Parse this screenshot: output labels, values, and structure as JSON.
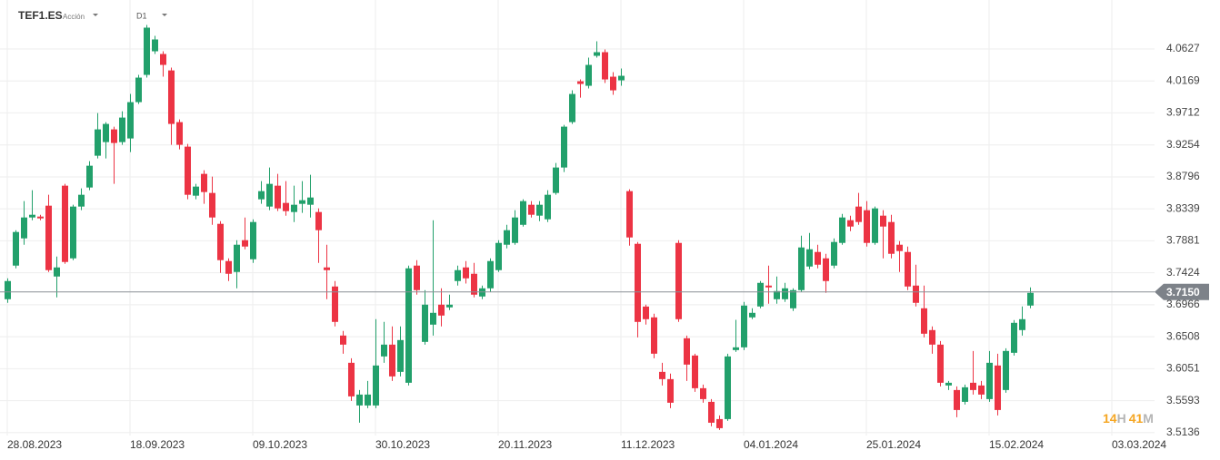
{
  "chart_data": {
    "type": "candlestick",
    "symbol": "TEF1.ES",
    "instrument_type": "Acción",
    "timeframe": "D1",
    "up_color": "#22a06b",
    "down_color": "#ec3444",
    "grid": true,
    "xlim": [
      -0.889,
      140.222
    ],
    "xticks": [
      {
        "value": 0,
        "label": "28.08.2023"
      },
      {
        "value": 15,
        "label": "18.09.2023"
      },
      {
        "value": 30,
        "label": "09.10.2023"
      },
      {
        "value": 45,
        "label": "30.10.2023"
      },
      {
        "value": 60,
        "label": "20.11.2023"
      },
      {
        "value": 75,
        "label": "11.12.2023"
      },
      {
        "value": 90,
        "label": "04.01.2024"
      },
      {
        "value": 105,
        "label": "25.01.2024"
      },
      {
        "value": 120,
        "label": "15.02.2024"
      },
      {
        "value": 135,
        "label": "03.03.2024"
      }
    ],
    "ylim": [
      3.5094,
      4.1328
    ],
    "yticks": [
      4.0627,
      4.0169,
      3.9712,
      3.9254,
      3.8796,
      3.8339,
      3.7881,
      3.7424,
      3.6966,
      3.6508,
      3.6051,
      3.5593,
      3.5136
    ],
    "current_price": {
      "value": 3.715,
      "label": "3.7150"
    },
    "countdown": {
      "hours": 14,
      "hours_unit": "H",
      "minutes": 41,
      "minutes_unit": "M"
    },
    "open": [
      3.7045,
      3.7526,
      3.7916,
      3.8215,
      3.8228,
      3.8384,
      3.737,
      3.867,
      3.763,
      3.8371,
      3.8644,
      3.9099,
      3.9294,
      3.9476,
      3.9294,
      3.9346,
      3.9866,
      4.0256,
      4.0594,
      4.0555,
      4.032,
      3.958,
      3.9229,
      3.8527,
      3.8839,
      3.8566,
      3.8124,
      3.7591,
      3.7435,
      3.789,
      3.7617,
      3.8475,
      3.8371,
      3.867,
      3.8423,
      3.8293,
      3.841,
      3.8397,
      3.8293,
      3.75,
      3.7227,
      3.6525,
      3.6135,
      3.5524,
      3.5524,
      3.5524,
      3.6226,
      3.6395,
      3.6005,
      3.5849,
      3.7526,
      3.6434,
      3.6681,
      3.6967,
      3.6928,
      3.7305,
      3.75,
      3.7409,
      3.7084,
      3.7201,
      3.7461,
      3.7825,
      3.7851,
      3.811,
      3.8397,
      3.8241,
      3.8189,
      3.8566,
      3.893,
      3.958,
      4.0165,
      4.01,
      4.0529,
      4.0581,
      4.023,
      4.0178,
      3.8592,
      3.7838,
      3.694,
      3.6785,
      3.6005,
      3.5901,
      3.7851,
      3.6486,
      3.6239,
      3.5771,
      3.5576,
      3.5329,
      3.5329,
      3.6317,
      3.6356,
      3.6785,
      3.6941,
      3.724,
      3.7045,
      3.7045,
      3.6915,
      3.7175,
      3.7513,
      3.7721,
      3.763,
      3.7526,
      3.7851,
      3.8176,
      3.8371,
      3.8319,
      3.7851,
      3.8241,
      3.815,
      3.7825,
      3.7721,
      3.724,
      3.6915,
      3.6603,
      3.6395,
      3.581,
      3.5745,
      3.5576,
      3.5849,
      3.581,
      3.5615,
      3.6096,
      3.5745,
      3.6278,
      3.6603,
      3.6954
    ],
    "high": [
      3.7344,
      3.8033,
      3.8449,
      3.8605,
      3.8254,
      3.854,
      3.7656,
      3.8696,
      3.8397,
      3.8631,
      3.9021,
      3.971,
      3.958,
      3.9515,
      3.9736,
      3.9983,
      4.0256,
      4.0971,
      4.0815,
      4.0594,
      4.036,
      3.9619,
      3.9268,
      3.8696,
      3.8891,
      3.88,
      3.8163,
      3.763,
      3.789,
      3.8215,
      3.8189,
      3.8735,
      3.893,
      3.8839,
      3.8735,
      3.867,
      3.8735,
      3.8826,
      3.8345,
      3.7825,
      3.7305,
      3.659,
      3.62,
      3.5745,
      3.5875,
      3.6759,
      3.672,
      3.6655,
      3.6655,
      3.7526,
      3.7604,
      3.7175,
      3.8176,
      3.7201,
      3.711,
      3.7526,
      3.7591,
      3.7565,
      3.724,
      3.763,
      3.789,
      3.8111,
      3.8319,
      3.8475,
      3.8449,
      3.8449,
      3.8605,
      3.8995,
      3.9541,
      4.0035,
      4.0191,
      4.0503,
      4.0737,
      4.062,
      4.0295,
      4.0347,
      3.8618,
      3.7864,
      3.6967,
      3.6837,
      3.6135,
      3.598,
      3.789,
      3.6525,
      3.6265,
      3.5823,
      3.5615,
      3.5381,
      3.6265,
      3.675,
      3.7006,
      3.6915,
      3.7305,
      3.7526,
      3.737,
      3.7279,
      3.7201,
      3.7955,
      3.7994,
      3.7825,
      3.7695,
      3.7916,
      3.8267,
      3.8241,
      3.8566,
      3.8449,
      3.8371,
      3.8319,
      3.8254,
      3.7877,
      3.7799,
      3.7539,
      3.724,
      3.6655,
      3.6447,
      3.5875,
      3.5797,
      3.5823,
      3.6304,
      3.5875,
      3.6304,
      3.6265,
      3.6343,
      3.6746,
      3.6941,
      3.7214
    ],
    "low": [
      3.6993,
      3.7487,
      3.7825,
      3.8176,
      3.8176,
      3.7435,
      3.7071,
      3.7552,
      3.7604,
      3.8319,
      3.8605,
      3.906,
      3.906,
      3.8696,
      3.9255,
      3.9151,
      3.984,
      4.0217,
      4.0555,
      4.023,
      3.9255,
      3.919,
      3.8475,
      3.8475,
      3.841,
      3.811,
      3.7422,
      3.7305,
      3.7201,
      3.776,
      3.7565,
      3.841,
      3.8319,
      3.8306,
      3.8241,
      3.815,
      3.828,
      3.8215,
      3.7565,
      3.7045,
      3.6655,
      3.6265,
      3.5589,
      3.5277,
      3.5485,
      3.5485,
      3.6135,
      3.5875,
      3.594,
      3.581,
      3.711,
      3.6395,
      3.6525,
      3.6655,
      3.6889,
      3.724,
      3.727,
      3.7071,
      3.7045,
      3.7149,
      3.7435,
      3.7773,
      3.7825,
      3.8085,
      3.8215,
      3.8163,
      3.815,
      3.854,
      3.8865,
      3.9554,
      3.9931,
      4.0061,
      4.0503,
      4.0139,
      3.997,
      4.01,
      3.7812,
      3.6499,
      3.6681,
      3.62,
      3.581,
      3.5485,
      3.672,
      3.5875,
      3.5719,
      3.5563,
      3.5225,
      3.5173,
      3.5303,
      3.6291,
      3.6317,
      3.6759,
      3.6915,
      3.698,
      3.698,
      3.7006,
      3.6876,
      3.7149,
      3.7474,
      3.7487,
      3.7136,
      3.7487,
      3.7825,
      3.802,
      3.811,
      3.7799,
      3.7825,
      3.763,
      3.763,
      3.7435,
      3.7175,
      3.6941,
      3.6499,
      3.6265,
      3.5797,
      3.5745,
      3.5355,
      3.5537,
      3.568,
      3.5615,
      3.5576,
      3.5381,
      3.5706,
      3.6239,
      3.6525,
      3.6915
    ],
    "close": [
      3.7305,
      3.8007,
      3.8215,
      3.8254,
      3.8202,
      3.7461,
      3.75,
      3.7578,
      3.8371,
      3.854,
      3.8956,
      3.9476,
      3.9554,
      3.9281,
      3.9645,
      3.9866,
      4.0217,
      4.0932,
      4.0763,
      4.0399,
      3.9554,
      3.9255,
      3.854,
      3.8657,
      3.8579,
      3.8215,
      3.7604,
      3.7409,
      3.7825,
      3.7799,
      3.815,
      3.8592,
      3.8696,
      3.8345,
      3.8306,
      3.8397,
      3.8462,
      3.8501,
      3.8033,
      3.7461,
      3.672,
      3.6395,
      3.5654,
      3.568,
      3.568,
      3.6096,
      3.6395,
      3.594,
      3.646,
      3.7487,
      3.7175,
      3.6967,
      3.685,
      3.6811,
      3.6967,
      3.7461,
      3.7344,
      3.711,
      3.7201,
      3.7591,
      3.7851,
      3.8033,
      3.8215,
      3.8449,
      3.8254,
      3.8397,
      3.854,
      3.893,
      3.9515,
      3.9983,
      4.0126,
      4.0399,
      4.0581,
      4.0191,
      4.0035,
      4.0243,
      3.7929,
      3.672,
      3.6759,
      3.6265,
      3.5901,
      3.5563,
      3.6759,
      3.6109,
      3.5771,
      3.5615,
      3.5277,
      3.5199,
      3.6226,
      3.6356,
      3.6954,
      3.685,
      3.7279,
      3.7214,
      3.7162,
      3.7201,
      3.7175,
      3.7786,
      3.776,
      3.7539,
      3.7305,
      3.7864,
      3.8215,
      3.8085,
      3.815,
      3.7851,
      3.8345,
      3.8085,
      3.7695,
      3.7734,
      3.7227,
      3.6993,
      3.6551,
      3.6395,
      3.5849,
      3.5849,
      3.5459,
      3.5784,
      3.5745,
      3.568,
      3.6135,
      3.5459,
      3.6304,
      3.6707,
      3.6759,
      3.7136
    ]
  }
}
